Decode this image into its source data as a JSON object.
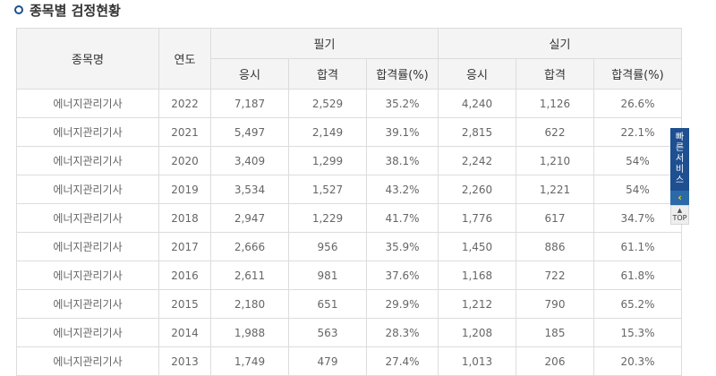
{
  "section": {
    "title": "종목별 검정현황"
  },
  "table": {
    "header": {
      "name": "종목명",
      "year": "연도",
      "written": "필기",
      "practical": "실기",
      "sub": [
        "응시",
        "합격",
        "합격률(%)",
        "응시",
        "합격",
        "합격률(%)"
      ]
    },
    "rows": [
      [
        "에너지관리기사",
        "2022",
        "7,187",
        "2,529",
        "35.2%",
        "4,240",
        "1,126",
        "26.6%"
      ],
      [
        "에너지관리기사",
        "2021",
        "5,497",
        "2,149",
        "39.1%",
        "2,815",
        "622",
        "22.1%"
      ],
      [
        "에너지관리기사",
        "2020",
        "3,409",
        "1,299",
        "38.1%",
        "2,242",
        "1,210",
        "54%"
      ],
      [
        "에너지관리기사",
        "2019",
        "3,534",
        "1,527",
        "43.2%",
        "2,260",
        "1,221",
        "54%"
      ],
      [
        "에너지관리기사",
        "2018",
        "2,947",
        "1,229",
        "41.7%",
        "1,776",
        "617",
        "34.7%"
      ],
      [
        "에너지관리기사",
        "2017",
        "2,666",
        "956",
        "35.9%",
        "1,450",
        "886",
        "61.1%"
      ],
      [
        "에너지관리기사",
        "2016",
        "2,611",
        "981",
        "37.6%",
        "1,168",
        "722",
        "61.8%"
      ],
      [
        "에너지관리기사",
        "2015",
        "2,180",
        "651",
        "29.9%",
        "1,212",
        "790",
        "65.2%"
      ],
      [
        "에너지관리기사",
        "2014",
        "1,988",
        "563",
        "28.3%",
        "1,208",
        "185",
        "15.3%"
      ],
      [
        "에너지관리기사",
        "2013",
        "1,749",
        "479",
        "27.4%",
        "1,013",
        "206",
        "20.3%"
      ]
    ]
  },
  "quick_menu": {
    "label_chars": [
      "빠",
      "른",
      "서",
      "비",
      "스"
    ],
    "collapse_icon": "chevron-left-icon",
    "top_label": "TOP",
    "colors": {
      "panel": "#1d4f91",
      "arrow": "#ffd400"
    }
  }
}
